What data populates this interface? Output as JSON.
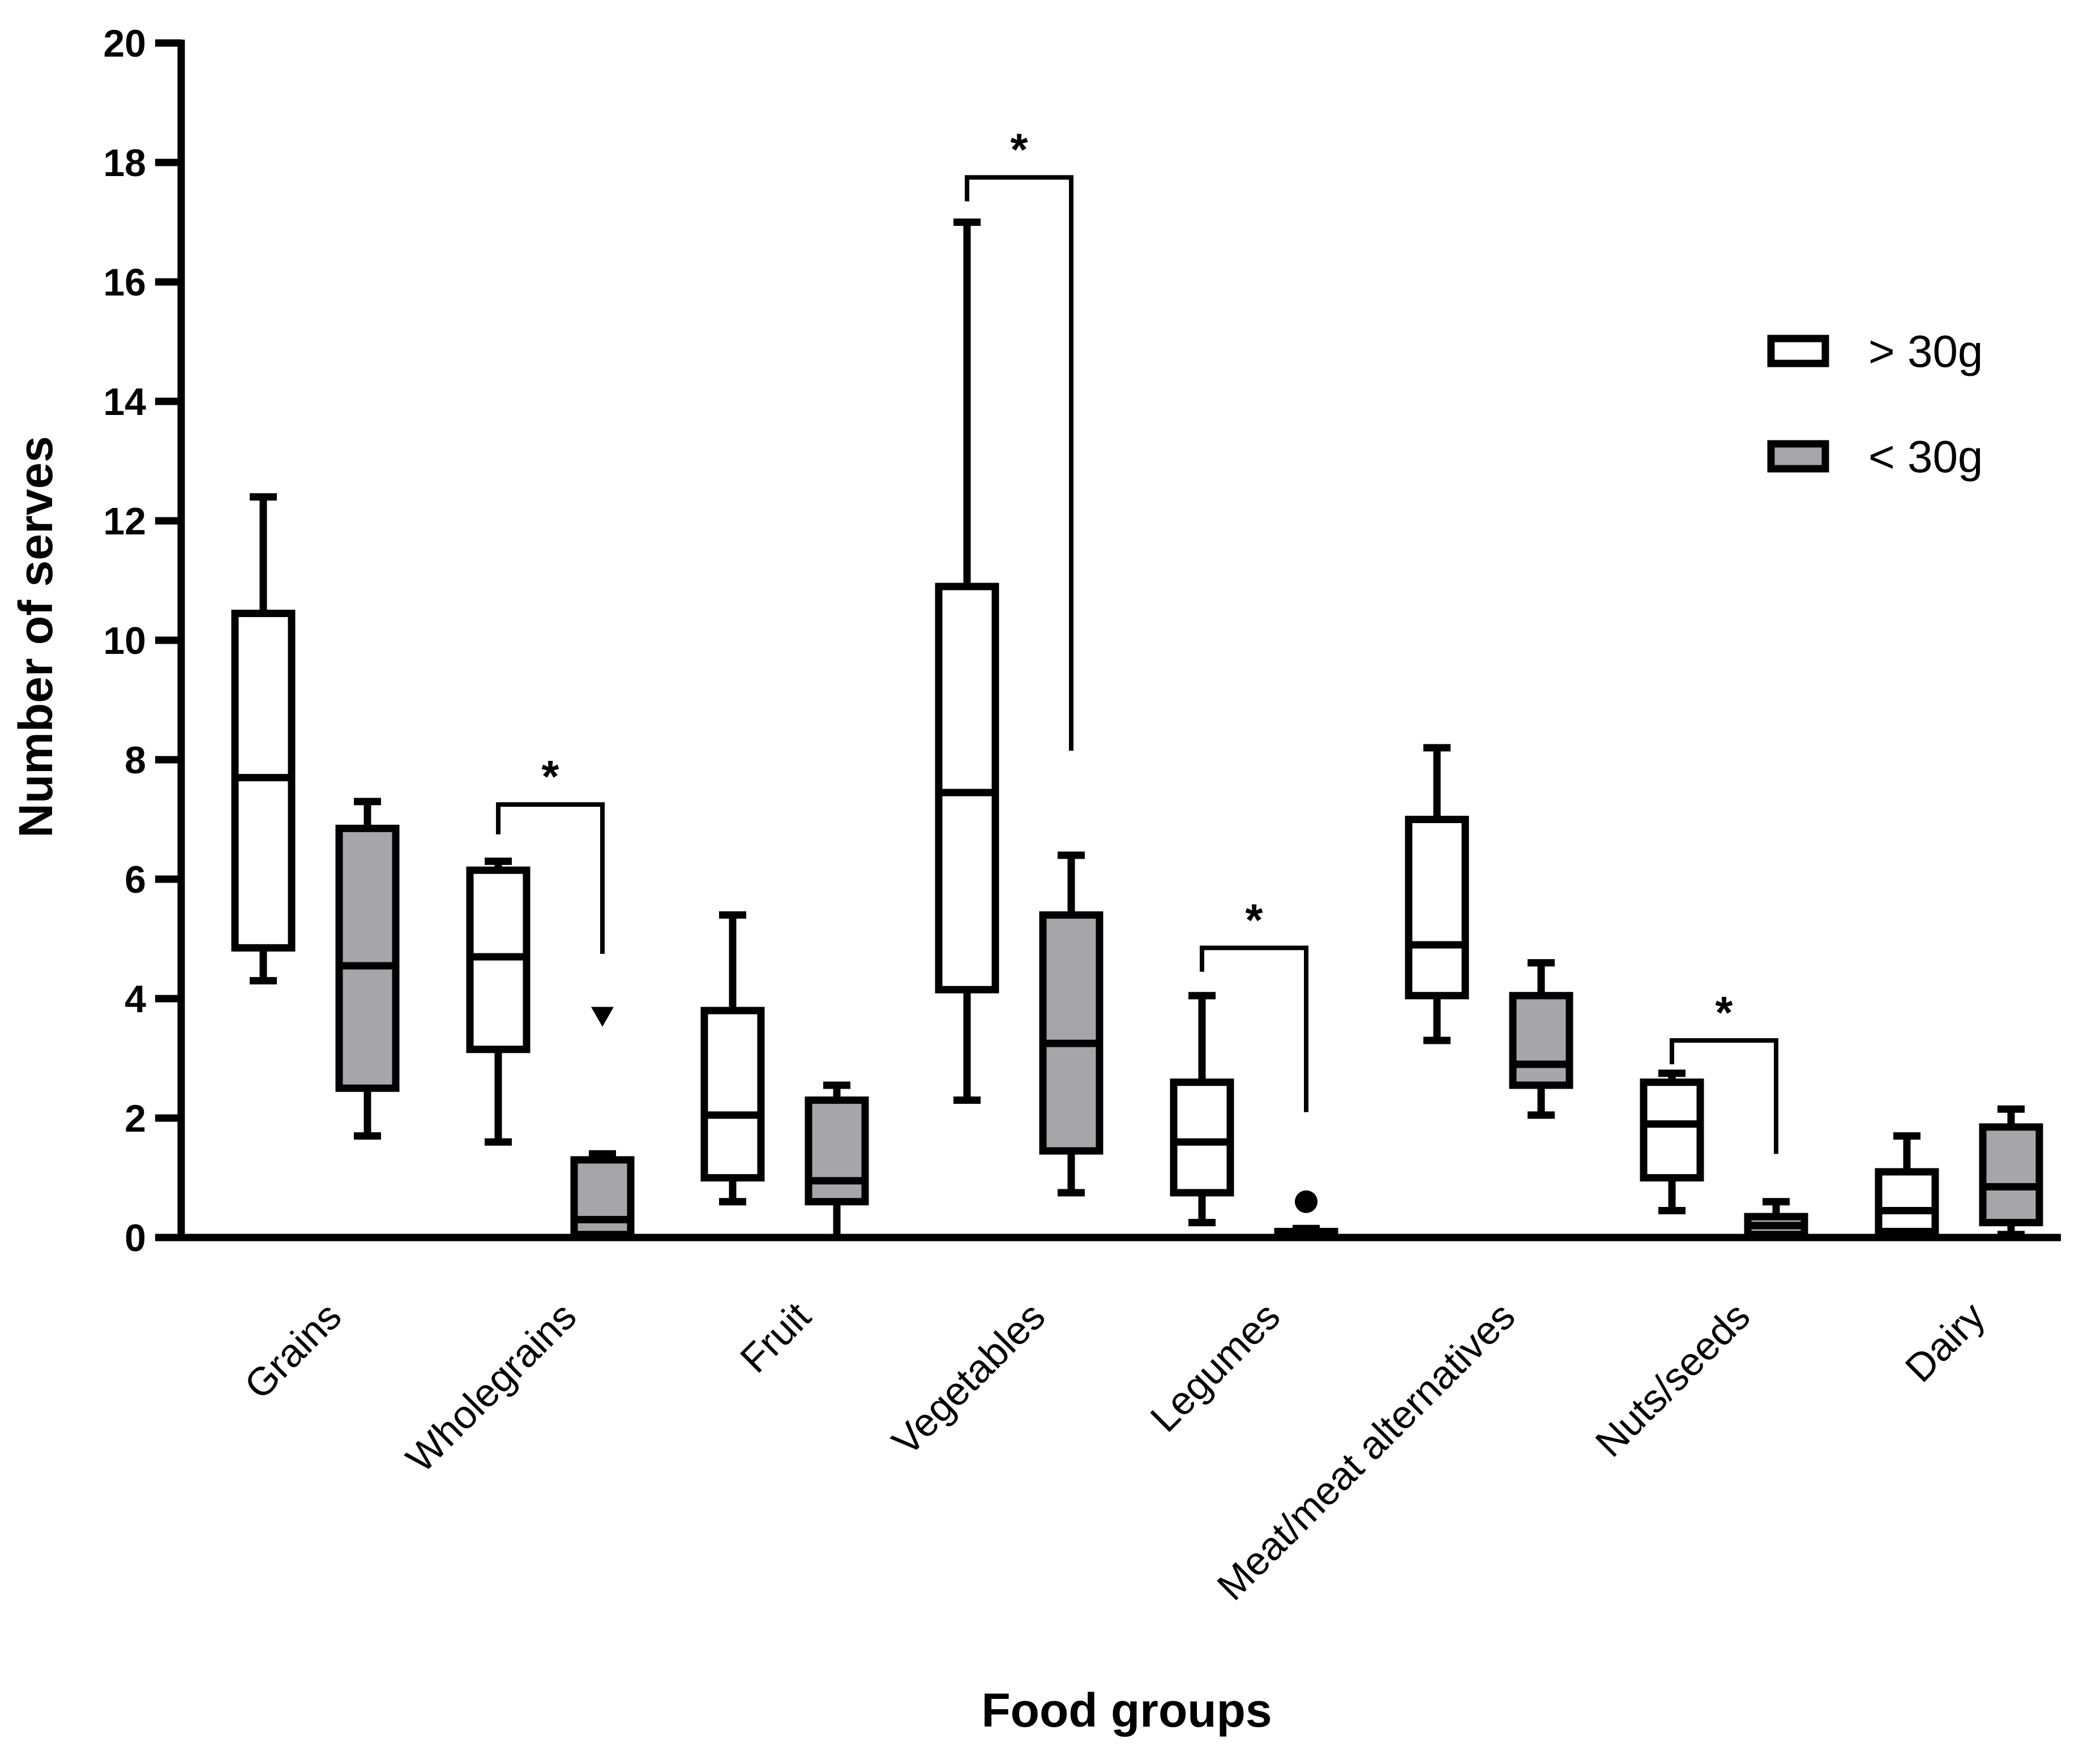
{
  "chart_data": {
    "type": "boxplot",
    "title": "",
    "xlabel": "Food groups",
    "ylabel": "Number of serves",
    "ylim": [
      0,
      20
    ],
    "yticks": [
      0,
      2,
      4,
      6,
      8,
      10,
      12,
      14,
      16,
      18,
      20
    ],
    "grid": false,
    "legend_position": "top-right",
    "categories": [
      "Grains",
      "Wholegrains",
      "Fruit",
      "Vegetables",
      "Legumes",
      "Meat/meat alternatives",
      "Nuts/seeds",
      "Dairy"
    ],
    "series": [
      {
        "name": "> 30g",
        "color": "#ffffff",
        "boxes": [
          {
            "min": 4.3,
            "q1": 4.85,
            "median": 7.7,
            "q3": 10.45,
            "max": 12.4
          },
          {
            "min": 1.6,
            "q1": 3.15,
            "median": 4.7,
            "q3": 6.15,
            "max": 6.3
          },
          {
            "min": 0.6,
            "q1": 1.0,
            "median": 2.05,
            "q3": 3.8,
            "max": 5.4
          },
          {
            "min": 2.3,
            "q1": 4.15,
            "median": 7.45,
            "q3": 10.9,
            "max": 17.0
          },
          {
            "min": 0.25,
            "q1": 0.75,
            "median": 1.6,
            "q3": 2.6,
            "max": 4.05
          },
          {
            "min": 3.3,
            "q1": 4.05,
            "median": 4.9,
            "q3": 7.0,
            "max": 8.2
          },
          {
            "min": 0.45,
            "q1": 1.0,
            "median": 1.9,
            "q3": 2.6,
            "max": 2.75
          },
          {
            "min": 0.0,
            "q1": 0.1,
            "median": 0.45,
            "q3": 1.1,
            "max": 1.7
          }
        ]
      },
      {
        "name": "< 30g",
        "color": "#a6a6a8",
        "boxes": [
          {
            "min": 1.7,
            "q1": 2.5,
            "median": 4.55,
            "q3": 6.85,
            "max": 7.3
          },
          {
            "min": 0.0,
            "q1": 0.05,
            "median": 0.3,
            "q3": 1.3,
            "max": 1.4
          },
          {
            "min": 0.0,
            "q1": 0.6,
            "median": 0.95,
            "q3": 2.3,
            "max": 2.55
          },
          {
            "min": 0.75,
            "q1": 1.45,
            "median": 3.25,
            "q3": 5.4,
            "max": 6.4
          },
          {
            "min": 0.0,
            "q1": 0.0,
            "median": 0.05,
            "q3": 0.1,
            "max": 0.15
          },
          {
            "min": 2.05,
            "q1": 2.55,
            "median": 2.9,
            "q3": 4.05,
            "max": 4.6
          },
          {
            "min": 0.0,
            "q1": 0.05,
            "median": 0.2,
            "q3": 0.35,
            "max": 0.6
          },
          {
            "min": 0.05,
            "q1": 0.25,
            "median": 0.85,
            "q3": 1.85,
            "max": 2.15
          }
        ]
      }
    ],
    "outliers": [
      {
        "category": "Wholegrains",
        "series": "< 30g",
        "value": 3.7,
        "marker": "triangle-down"
      },
      {
        "category": "Legumes",
        "series": "< 30g",
        "value": 0.6,
        "marker": "circle"
      }
    ],
    "significance": [
      {
        "category": "Wholegrains",
        "label": "*",
        "left_value": 6.75,
        "right_value": 4.75,
        "top_value": 7.25
      },
      {
        "category": "Vegetables",
        "label": "*",
        "left_value": 17.35,
        "right_value": 8.15,
        "top_value": 17.75
      },
      {
        "category": "Legumes",
        "label": "*",
        "left_value": 4.45,
        "right_value": 2.1,
        "top_value": 4.85
      },
      {
        "category": "Nuts/seeds",
        "label": "*",
        "left_value": 2.9,
        "right_value": 1.4,
        "top_value": 3.3
      }
    ]
  }
}
